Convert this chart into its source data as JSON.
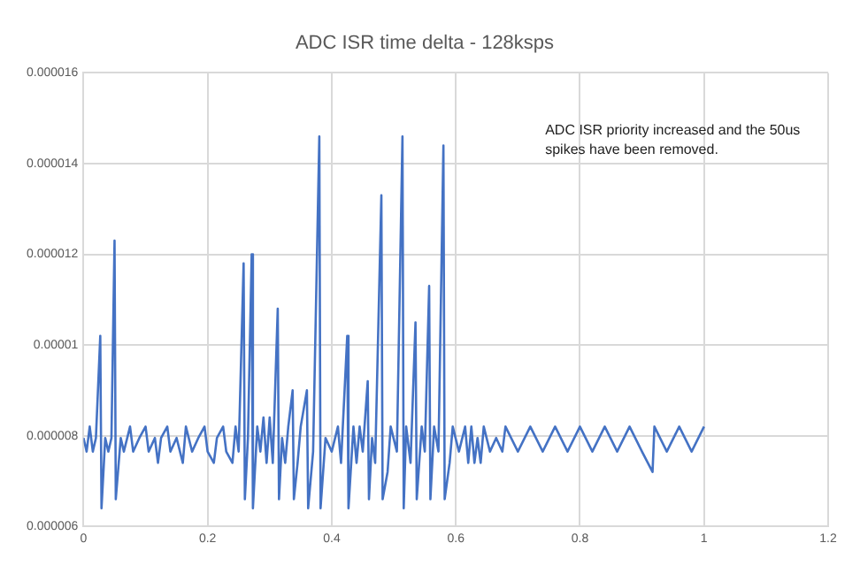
{
  "chart_data": {
    "type": "line",
    "title": "ADC ISR time delta - 128ksps",
    "annotations": [
      "ADC ISR priority increased and the 50us spikes have been removed."
    ],
    "x": [
      0,
      0.005,
      0.01,
      0.015,
      0.02,
      0.027,
      0.029,
      0.035,
      0.04,
      0.045,
      0.05,
      0.052,
      0.06,
      0.065,
      0.075,
      0.08,
      0.09,
      0.1,
      0.105,
      0.115,
      0.12,
      0.125,
      0.135,
      0.14,
      0.15,
      0.16,
      0.165,
      0.175,
      0.185,
      0.195,
      0.2,
      0.21,
      0.215,
      0.225,
      0.23,
      0.24,
      0.245,
      0.25,
      0.258,
      0.26,
      0.265,
      0.271,
      0.273,
      0.28,
      0.285,
      0.29,
      0.295,
      0.3,
      0.305,
      0.313,
      0.315,
      0.32,
      0.325,
      0.33,
      0.337,
      0.339,
      0.345,
      0.35,
      0.36,
      0.362,
      0.37,
      0.38,
      0.382,
      0.39,
      0.4,
      0.41,
      0.415,
      0.425,
      0.427,
      0.435,
      0.44,
      0.445,
      0.45,
      0.458,
      0.46,
      0.465,
      0.47,
      0.48,
      0.482,
      0.49,
      0.495,
      0.505,
      0.514,
      0.516,
      0.52,
      0.527,
      0.535,
      0.537,
      0.545,
      0.55,
      0.557,
      0.559,
      0.565,
      0.572,
      0.58,
      0.582,
      0.59,
      0.595,
      0.605,
      0.615,
      0.62,
      0.625,
      0.63,
      0.635,
      0.64,
      0.645,
      0.655,
      0.665,
      0.675,
      0.68,
      0.7,
      0.72,
      0.74,
      0.76,
      0.78,
      0.8,
      0.82,
      0.84,
      0.86,
      0.88,
      0.9,
      0.917,
      0.92,
      0.94,
      0.96,
      0.98,
      1.0
    ],
    "series": [
      {
        "color": "#4472c4",
        "values": [
          7.95e-06,
          7.65e-06,
          8.2e-06,
          7.65e-06,
          7.95e-06,
          1.02e-05,
          6.4e-06,
          7.95e-06,
          7.65e-06,
          7.95e-06,
          1.23e-05,
          6.6e-06,
          7.95e-06,
          7.65e-06,
          8.2e-06,
          7.65e-06,
          7.95e-06,
          8.2e-06,
          7.65e-06,
          7.95e-06,
          7.4e-06,
          7.95e-06,
          8.2e-06,
          7.65e-06,
          7.95e-06,
          7.4e-06,
          8.2e-06,
          7.65e-06,
          7.95e-06,
          8.2e-06,
          7.65e-06,
          7.4e-06,
          7.95e-06,
          8.2e-06,
          7.65e-06,
          7.4e-06,
          8.2e-06,
          7.65e-06,
          1.18e-05,
          6.6e-06,
          7.95e-06,
          1.2e-05,
          6.4e-06,
          8.2e-06,
          7.65e-06,
          8.4e-06,
          7.4e-06,
          8.4e-06,
          7.4e-06,
          1.08e-05,
          6.6e-06,
          7.95e-06,
          7.4e-06,
          8.2e-06,
          9e-06,
          6.6e-06,
          7.4e-06,
          8.2e-06,
          9e-06,
          6.4e-06,
          7.65e-06,
          1.46e-05,
          6.4e-06,
          7.95e-06,
          7.65e-06,
          8.2e-06,
          7.4e-06,
          1.02e-05,
          6.4e-06,
          8.2e-06,
          7.4e-06,
          8.2e-06,
          7.65e-06,
          9.2e-06,
          6.6e-06,
          7.95e-06,
          7.4e-06,
          1.33e-05,
          6.6e-06,
          7.2e-06,
          8.2e-06,
          7.65e-06,
          1.46e-05,
          6.4e-06,
          8.2e-06,
          7.4e-06,
          1.05e-05,
          6.6e-06,
          8.2e-06,
          7.65e-06,
          1.13e-05,
          6.6e-06,
          8.2e-06,
          7.65e-06,
          1.44e-05,
          6.6e-06,
          7.4e-06,
          8.2e-06,
          7.65e-06,
          8.2e-06,
          7.4e-06,
          8.2e-06,
          7.4e-06,
          7.95e-06,
          7.4e-06,
          8.2e-06,
          7.65e-06,
          7.95e-06,
          7.65e-06,
          8.2e-06,
          7.65e-06,
          8.2e-06,
          7.65e-06,
          8.2e-06,
          7.65e-06,
          8.2e-06,
          7.65e-06,
          8.2e-06,
          7.65e-06,
          8.2e-06,
          7.65e-06,
          7.2e-06,
          8.2e-06,
          7.65e-06,
          8.2e-06,
          7.65e-06,
          8.2e-06
        ]
      }
    ],
    "xlim": [
      0,
      1.2
    ],
    "xticks": [
      0,
      0.2,
      0.4,
      0.6,
      0.8,
      1,
      1.2
    ],
    "ylim": [
      6e-06,
      1.6e-05
    ],
    "yticks": [
      {
        "value": 6e-06,
        "label": "0.000006"
      },
      {
        "value": 8e-06,
        "label": "0.000008"
      },
      {
        "value": 1e-05,
        "label": "0.00001"
      },
      {
        "value": 1.2e-05,
        "label": "0.000012"
      },
      {
        "value": 1.4e-05,
        "label": "0.000014"
      },
      {
        "value": 1.6e-05,
        "label": "0.000016"
      }
    ],
    "grid": true,
    "legend": false,
    "marker": "none",
    "line_style": "solid"
  }
}
